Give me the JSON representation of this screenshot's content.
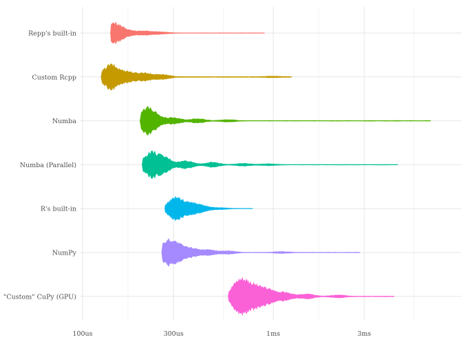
{
  "chart_data": {
    "type": "violin",
    "orientation": "horizontal",
    "xscale": "log",
    "xlim_us": [
      88,
      7600
    ],
    "x_ticks": [
      {
        "value_us": 100,
        "label": "100us"
      },
      {
        "value_us": 300,
        "label": "300us"
      },
      {
        "value_us": 1000,
        "label": "1ms"
      },
      {
        "value_us": 3000,
        "label": "3ms"
      }
    ],
    "x_minor_ticks_us": [
      173,
      548,
      1732,
      5477
    ],
    "grid": true,
    "legend": "none",
    "series": [
      {
        "name": "Repp's built-in",
        "color": "#F8766D",
        "min_us": 140,
        "max_us": 900,
        "peaks": [
          [
            147,
            13
          ],
          [
            175,
            3
          ],
          [
            215,
            2.5
          ],
          [
            260,
            1.2
          ]
        ],
        "tail": 0.3
      },
      {
        "name": "Custom Rcpp",
        "color": "#C49A00",
        "min_us": 125,
        "max_us": 1250,
        "peaks": [
          [
            140,
            16
          ],
          [
            170,
            7
          ],
          [
            210,
            5
          ],
          [
            260,
            3
          ],
          [
            1000,
            0.6
          ]
        ],
        "tail": 0.5
      },
      {
        "name": "Numba",
        "color": "#53B400",
        "min_us": 200,
        "max_us": 6700,
        "peaks": [
          [
            213,
            15
          ],
          [
            240,
            7
          ],
          [
            300,
            4
          ],
          [
            400,
            2.5
          ],
          [
            580,
            1.2
          ]
        ],
        "tail": 0.4
      },
      {
        "name": "Numba (Parallel)",
        "color": "#00C094",
        "min_us": 205,
        "max_us": 4500,
        "peaks": [
          [
            228,
            16
          ],
          [
            270,
            9
          ],
          [
            350,
            5
          ],
          [
            480,
            3
          ],
          [
            700,
            1.5
          ],
          [
            950,
            1
          ]
        ],
        "tail": 0.35
      },
      {
        "name": "R's built-in",
        "color": "#00B6EB",
        "min_us": 270,
        "max_us": 780,
        "peaks": [
          [
            307,
            15
          ],
          [
            370,
            6
          ],
          [
            420,
            3.5
          ],
          [
            520,
            1
          ]
        ],
        "tail": 0.3
      },
      {
        "name": "NumPy",
        "color": "#A58AFF",
        "min_us": 260,
        "max_us": 2850,
        "peaks": [
          [
            280,
            15
          ],
          [
            320,
            8
          ],
          [
            380,
            5
          ],
          [
            460,
            3
          ],
          [
            580,
            2
          ],
          [
            1100,
            1
          ]
        ],
        "tail": 0.35
      },
      {
        "name": "\"Custom\" CuPy (GPU)",
        "color": "#FB61D7",
        "min_us": 580,
        "max_us": 4300,
        "peaks": [
          [
            650,
            16
          ],
          [
            720,
            13
          ],
          [
            820,
            10
          ],
          [
            950,
            8
          ],
          [
            1150,
            5
          ],
          [
            1500,
            3
          ],
          [
            2200,
            1.5
          ]
        ],
        "tail": 0.4
      }
    ]
  }
}
